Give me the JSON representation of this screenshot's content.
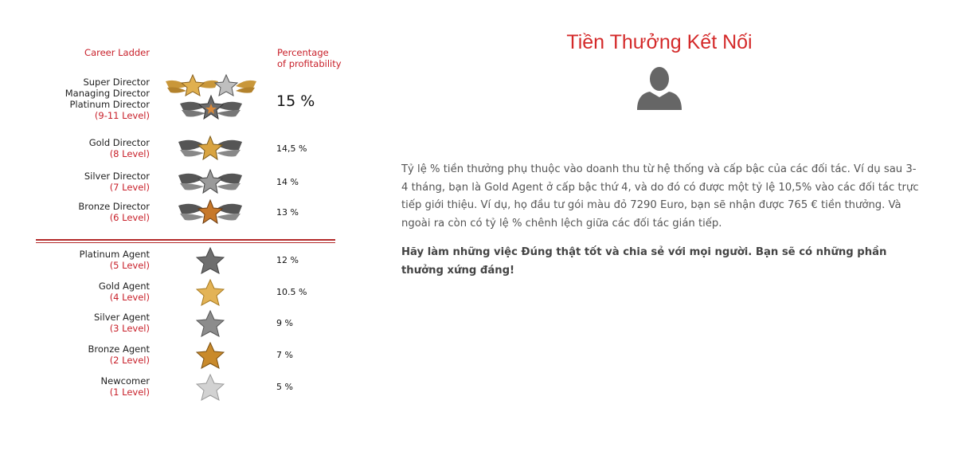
{
  "ladder": {
    "header_left": "Career Ladder",
    "header_right": "Percentage\nof profitability",
    "top_group": {
      "names": [
        "Super Director",
        "Managing Director",
        "Platinum Director"
      ],
      "level": "(9-11 Level)",
      "percent": "15 %"
    },
    "directors": [
      {
        "name": "Gold Director",
        "level": "(8 Level)",
        "percent": "14,5 %",
        "color": "#d9a441"
      },
      {
        "name": "Silver Director",
        "level": "(7 Level)",
        "percent": "14 %",
        "color": "#9a9a9a"
      },
      {
        "name": "Bronze Director",
        "level": "(6 Level)",
        "percent": "13 %",
        "color": "#c7782a"
      }
    ],
    "agents": [
      {
        "name": "Platinum Agent",
        "level": "(5 Level)",
        "percent": "12 %",
        "color": "#6e6e6e"
      },
      {
        "name": "Gold Agent",
        "level": "(4 Level)",
        "percent": "10.5 %",
        "color": "#e3b356"
      },
      {
        "name": "Silver Agent",
        "level": "(3 Level)",
        "percent": "9 %",
        "color": "#8c8c8c"
      },
      {
        "name": "Bronze Agent",
        "level": "(2 Level)",
        "percent": "7 %",
        "color": "#c98a2b"
      },
      {
        "name": "Newcomer",
        "level": "(1 Level)",
        "percent": "5 %",
        "color": "#d2d2d2"
      }
    ]
  },
  "content": {
    "title": "Tiền Thưởng Kết Nối",
    "paragraph": "Tỷ lệ % tiền thưởng phụ thuộc vào doanh thu từ hệ thống và cấp bậc của các đối tác. Ví dụ sau 3-4 tháng, bạn là Gold Agent ở cấp bậc thứ 4, và do đó có được một tỷ lệ 10,5% vào các đối tác trực tiếp giới thiệu. Ví dụ, họ đầu tư gói màu đỏ 7290 Euro, bạn sẽ nhận được 765 € tiền thưởng. Và ngoài ra còn có tỷ lệ % chênh lệch giữa các đối tác gián tiếp.",
    "emphasis": "Hãy làm những việc Đúng thật tốt và chia sẻ với mọi người. Bạn sẽ có những phần thưởng xứng đáng!",
    "avatar_icon": "user-silhouette-icon"
  }
}
